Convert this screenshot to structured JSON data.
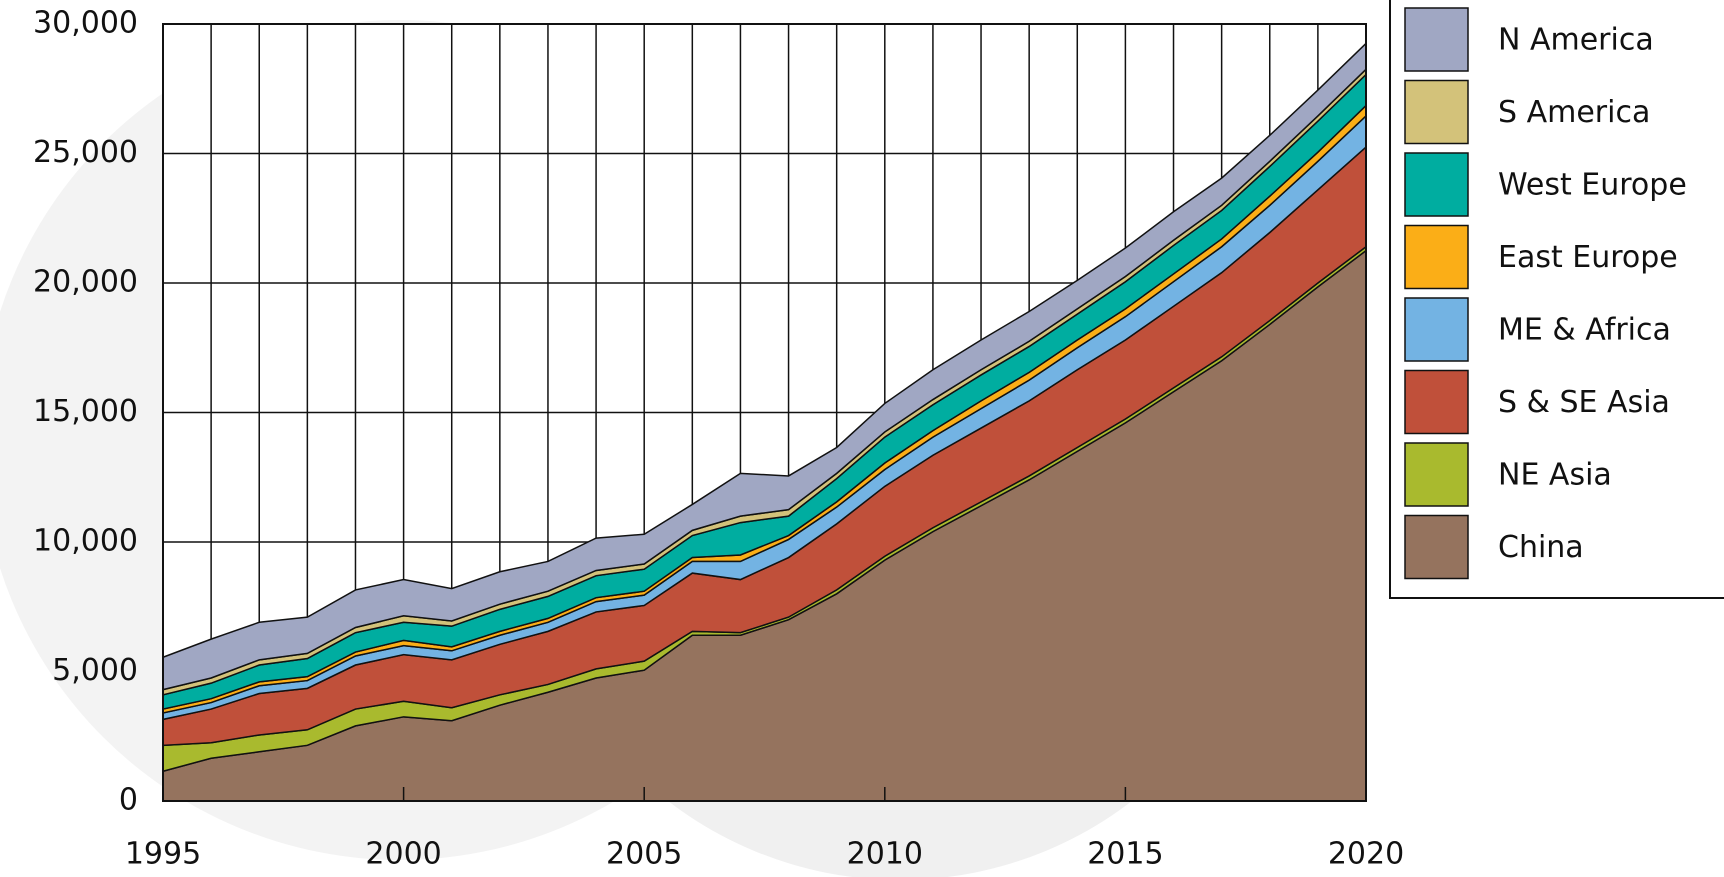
{
  "chart_data": {
    "type": "stacked_area",
    "x": [
      1995,
      1996,
      1997,
      1998,
      1999,
      2000,
      2001,
      2002,
      2003,
      2004,
      2005,
      2006,
      2007,
      2008,
      2009,
      2010,
      2011,
      2012,
      2013,
      2014,
      2015,
      2016,
      2017,
      2018,
      2019,
      2020
    ],
    "series": [
      {
        "name": "China",
        "color": "#95735e",
        "values": [
          1150,
          1650,
          1900,
          2150,
          2900,
          3250,
          3100,
          3700,
          4200,
          4750,
          5050,
          6400,
          6400,
          7000,
          8000,
          9300,
          10400,
          11400,
          12400,
          13500,
          14600,
          15800,
          17000,
          18400,
          19850,
          21250
        ]
      },
      {
        "name": "NE Asia",
        "color": "#a9ba2e",
        "values": [
          1000,
          600,
          650,
          600,
          650,
          600,
          500,
          400,
          300,
          350,
          350,
          150,
          100,
          100,
          150,
          150,
          150,
          150,
          150,
          150,
          150,
          150,
          150,
          150,
          150,
          150
        ]
      },
      {
        "name": "S & SE Asia",
        "color": "#c0503a",
        "values": [
          1000,
          1300,
          1600,
          1600,
          1700,
          1800,
          1850,
          1950,
          2050,
          2200,
          2150,
          2250,
          2050,
          2300,
          2550,
          2700,
          2800,
          2850,
          2900,
          3000,
          3050,
          3150,
          3250,
          3400,
          3600,
          3850
        ]
      },
      {
        "name": "ME & Africa",
        "color": "#73b3e3",
        "values": [
          250,
          250,
          300,
          300,
          350,
          350,
          350,
          350,
          350,
          400,
          400,
          450,
          700,
          700,
          650,
          650,
          700,
          750,
          800,
          850,
          900,
          950,
          1000,
          1050,
          1100,
          1200
        ]
      },
      {
        "name": "East Europe",
        "color": "#fbae17",
        "values": [
          150,
          150,
          150,
          150,
          150,
          200,
          150,
          150,
          150,
          150,
          150,
          150,
          250,
          150,
          200,
          250,
          250,
          300,
          300,
          300,
          300,
          300,
          300,
          350,
          350,
          400
        ]
      },
      {
        "name": "West Europe",
        "color": "#00ada0",
        "values": [
          550,
          600,
          650,
          700,
          750,
          700,
          800,
          850,
          850,
          850,
          850,
          850,
          1250,
          750,
          900,
          1000,
          1000,
          1000,
          1000,
          1000,
          1050,
          1100,
          1100,
          1150,
          1200,
          1200
        ]
      },
      {
        "name": "S America",
        "color": "#d3c27a",
        "values": [
          200,
          200,
          200,
          200,
          200,
          250,
          200,
          200,
          200,
          200,
          200,
          200,
          250,
          250,
          200,
          200,
          200,
          200,
          200,
          200,
          200,
          200,
          200,
          200,
          200,
          200
        ]
      },
      {
        "name": "N America",
        "color": "#a0a7c3",
        "values": [
          1250,
          1500,
          1450,
          1400,
          1450,
          1400,
          1250,
          1250,
          1150,
          1250,
          1150,
          1000,
          1650,
          1300,
          1000,
          1100,
          1150,
          1150,
          1150,
          1100,
          1100,
          1100,
          1050,
          1000,
          1000,
          1000
        ]
      }
    ],
    "xlim": [
      1995,
      2020
    ],
    "xticks": [
      1995,
      2000,
      2005,
      2010,
      2015,
      2020
    ],
    "ylim": [
      0,
      30000
    ],
    "yticks": [
      0,
      {
        "value": 5000,
        "label": "5,000"
      },
      {
        "value": 10000,
        "label": "10,000"
      },
      {
        "value": 15000,
        "label": "15,000"
      },
      {
        "value": 20000,
        "label": "20,000"
      },
      {
        "value": 25000,
        "label": "25,000"
      },
      {
        "value": 30000,
        "label": "30,000"
      }
    ],
    "grid": true,
    "legend": "right"
  }
}
